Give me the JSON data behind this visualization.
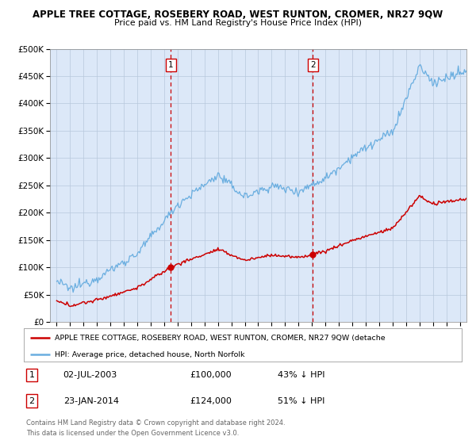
{
  "title": "APPLE TREE COTTAGE, ROSEBERY ROAD, WEST RUNTON, CROMER, NR27 9QW",
  "subtitle": "Price paid vs. HM Land Registry's House Price Index (HPI)",
  "background_color": "#dce8f8",
  "hpi_color": "#6aaee0",
  "property_color": "#cc0000",
  "vline_color": "#cc0000",
  "marker_color": "#cc0000",
  "purchase1_date": 2003.5,
  "purchase1_price": 100000,
  "purchase2_date": 2014.07,
  "purchase2_price": 124000,
  "legend1": "APPLE TREE COTTAGE, ROSEBERY ROAD, WEST RUNTON, CROMER, NR27 9QW (detache",
  "legend2": "HPI: Average price, detached house, North Norfolk",
  "table_row1": [
    "1",
    "02-JUL-2003",
    "£100,000",
    "43% ↓ HPI"
  ],
  "table_row2": [
    "2",
    "23-JAN-2014",
    "£124,000",
    "51% ↓ HPI"
  ],
  "footnote1": "Contains HM Land Registry data © Crown copyright and database right 2024.",
  "footnote2": "This data is licensed under the Open Government Licence v3.0.",
  "ylim_max": 500000,
  "ylim_min": 0,
  "xmin": 1994.5,
  "xmax": 2025.5
}
